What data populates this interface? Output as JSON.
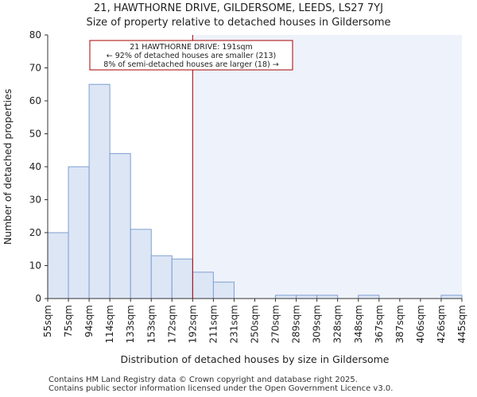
{
  "chart_data": {
    "type": "bar",
    "title": "21, HAWTHORNE DRIVE, GILDERSOME, LEEDS, LS27 7YJ",
    "subtitle": "Size of property relative to detached houses in Gildersome",
    "xlabel": "Distribution of detached houses by size in Gildersome",
    "ylabel": "Number of detached properties",
    "bin_edges": [
      "55sqm",
      "75sqm",
      "94sqm",
      "114sqm",
      "133sqm",
      "153sqm",
      "172sqm",
      "192sqm",
      "211sqm",
      "231sqm",
      "250sqm",
      "270sqm",
      "289sqm",
      "309sqm",
      "328sqm",
      "348sqm",
      "367sqm",
      "387sqm",
      "406sqm",
      "426sqm",
      "445sqm"
    ],
    "values": [
      20,
      40,
      65,
      44,
      21,
      13,
      12,
      8,
      5,
      0,
      0,
      1,
      1,
      1,
      0,
      1,
      0,
      0,
      0,
      1
    ],
    "ylim": [
      0,
      80
    ],
    "yticks": [
      0,
      10,
      20,
      30,
      40,
      50,
      60,
      70,
      80
    ],
    "marker": {
      "bin_position": 7,
      "value_sqm": 191,
      "color": "#aa0000",
      "annotation": [
        "21 HAWTHORNE DRIVE: 191sqm",
        "← 92% of detached houses are smaller (213)",
        "8% of semi-detached houses are larger (18) →"
      ]
    },
    "colors": {
      "bar_fill": "#dce6f5",
      "bar_stroke": "#7f9fd1",
      "highlight_region": "#eef2fb"
    }
  },
  "footer": {
    "line1": "Contains HM Land Registry data © Crown copyright and database right 2025.",
    "line2": "Contains public sector information licensed under the Open Government Licence v3.0."
  }
}
